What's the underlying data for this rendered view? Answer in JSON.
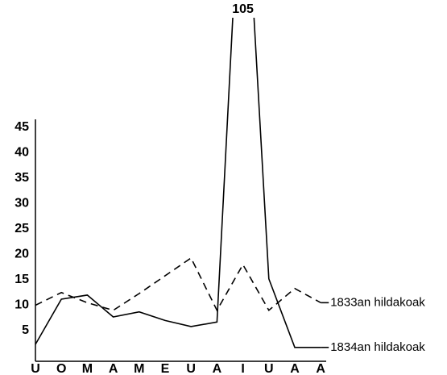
{
  "chart_data": {
    "type": "line",
    "categories": [
      "U",
      "O",
      "M",
      "A",
      "M",
      "E",
      "U",
      "A",
      "I",
      "U",
      "A",
      "A"
    ],
    "series": [
      {
        "name": "1833an hildakoak",
        "color": "#000000",
        "dashed": true,
        "values": [
          10,
          12.5,
          10.5,
          9,
          12.3,
          15.8,
          19.3,
          9,
          18,
          9,
          13.3,
          10.5
        ]
      },
      {
        "name": "1834an hildakoak",
        "color": "#000000",
        "dashed": false,
        "values": [
          2.3,
          11.2,
          12,
          7.7,
          8.7,
          7,
          5.8,
          6.7,
          105,
          15.2,
          1.7,
          1.7
        ],
        "value_labels": [
          null,
          null,
          null,
          null,
          null,
          null,
          null,
          null,
          "105",
          null,
          null,
          null
        ]
      }
    ],
    "ylim": [
      0,
      47
    ],
    "yticks": [
      5,
      10,
      15,
      20,
      25,
      30,
      35,
      40,
      45
    ],
    "grid": false
  }
}
